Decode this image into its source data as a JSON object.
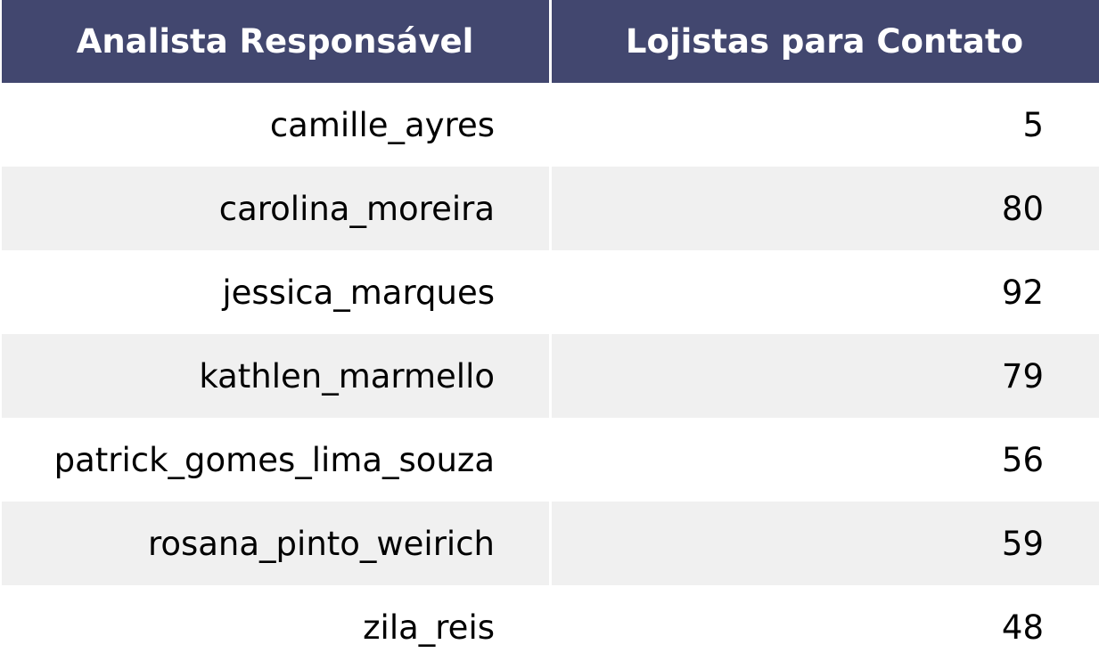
{
  "colors": {
    "header_bg": "#42476f",
    "header_text": "#ffffff",
    "row_even_bg": "#ffffff",
    "row_odd_bg": "#f0f0f0",
    "cell_text": "#000000"
  },
  "chart_data": {
    "type": "table",
    "columns": [
      "Analista Responsável",
      "Lojistas para Contato"
    ],
    "rows": [
      [
        "camille_ayres",
        "5"
      ],
      [
        "carolina_moreira",
        "80"
      ],
      [
        "jessica_marques",
        "92"
      ],
      [
        "kathlen_marmello",
        "79"
      ],
      [
        "patrick_gomes_lima_souza",
        "56"
      ],
      [
        "rosana_pinto_weirich",
        "59"
      ],
      [
        "zila_reis",
        "48"
      ]
    ]
  }
}
